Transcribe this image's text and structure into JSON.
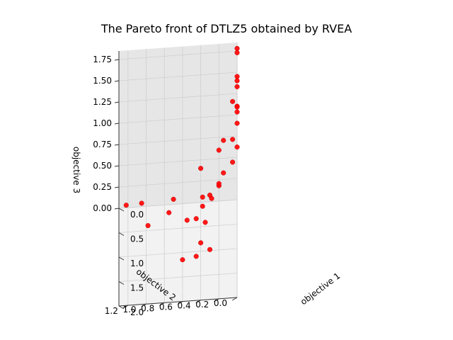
{
  "chart_data": {
    "type": "scatter",
    "projection": "3d",
    "title": "The Pareto front of DTLZ5 obtained by RVEA",
    "xlabel": "objective 1",
    "ylabel": "objective 2",
    "zlabel": "objective 3",
    "xlim": [
      0,
      2.0
    ],
    "ylim": [
      0,
      1.3
    ],
    "zlim": [
      0,
      1.85
    ],
    "xticks": [
      "0.0",
      "0.5",
      "1.0",
      "1.5",
      "2.0"
    ],
    "yticks": [
      "0.0",
      "0.2",
      "0.4",
      "0.6",
      "0.8",
      "1.0",
      "1.2"
    ],
    "zticks": [
      "0.00",
      "0.25",
      "0.50",
      "0.75",
      "1.00",
      "1.25",
      "1.50",
      "1.75"
    ],
    "grid": true,
    "marker_color": "#ff0000",
    "series": [
      {
        "points": [
          {
            "x": 0.0,
            "y": 0.0,
            "z": 1.78
          },
          {
            "x": 0.0,
            "y": 0.0,
            "z": 1.73
          },
          {
            "x": 0.0,
            "y": 0.0,
            "z": 1.45
          },
          {
            "x": 0.0,
            "y": 0.0,
            "z": 1.4
          },
          {
            "x": 0.0,
            "y": 0.0,
            "z": 1.33
          },
          {
            "x": 0.0,
            "y": 0.0,
            "z": 1.1
          },
          {
            "x": 0.05,
            "y": 0.0,
            "z": 1.12
          },
          {
            "x": 0.0,
            "y": 0.05,
            "z": 1.16
          },
          {
            "x": 0.0,
            "y": 0.0,
            "z": 0.9
          },
          {
            "x": 0.1,
            "y": 0.0,
            "z": 1.09
          },
          {
            "x": 0.15,
            "y": 0.05,
            "z": 0.8
          },
          {
            "x": 0.0,
            "y": 0.15,
            "z": 0.71
          },
          {
            "x": 0.35,
            "y": 0.2,
            "z": 0.8
          },
          {
            "x": 0.0,
            "y": 0.0,
            "z": 0.62
          },
          {
            "x": 0.25,
            "y": 0.05,
            "z": 0.59
          },
          {
            "x": 0.3,
            "y": 0.15,
            "z": 0.5
          },
          {
            "x": 0.4,
            "y": 0.2,
            "z": 0.41
          },
          {
            "x": 0.6,
            "y": 0.2,
            "z": 0.55
          },
          {
            "x": 0.0,
            "y": 0.4,
            "z": 0.4
          },
          {
            "x": 0.3,
            "y": 0.3,
            "z": 0.25
          },
          {
            "x": 0.25,
            "y": 0.28,
            "z": 0.18
          },
          {
            "x": 0.5,
            "y": 0.38,
            "z": 0.24
          },
          {
            "x": 0.85,
            "y": 0.35,
            "z": 0.25
          },
          {
            "x": 0.0,
            "y": 0.38,
            "z": 0.06
          },
          {
            "x": 0.5,
            "y": 0.45,
            "z": 0.1
          },
          {
            "x": 0.45,
            "y": 0.55,
            "z": 0.06
          },
          {
            "x": 0.95,
            "y": 0.4,
            "z": 0.07
          },
          {
            "x": 1.1,
            "y": 0.3,
            "z": 0.07
          },
          {
            "x": 0.0,
            "y": 0.7,
            "z": 0.06
          },
          {
            "x": 0.25,
            "y": 0.75,
            "z": 0.05
          },
          {
            "x": 1.15,
            "y": 0.45,
            "z": 0.03
          },
          {
            "x": 1.2,
            "y": 0.6,
            "z": 0.03
          },
          {
            "x": 0.45,
            "y": 0.98,
            "z": 0.03
          },
          {
            "x": 0.0,
            "y": 1.05,
            "z": 0.04
          },
          {
            "x": 0.0,
            "y": 1.22,
            "z": 0.03
          }
        ]
      }
    ]
  }
}
